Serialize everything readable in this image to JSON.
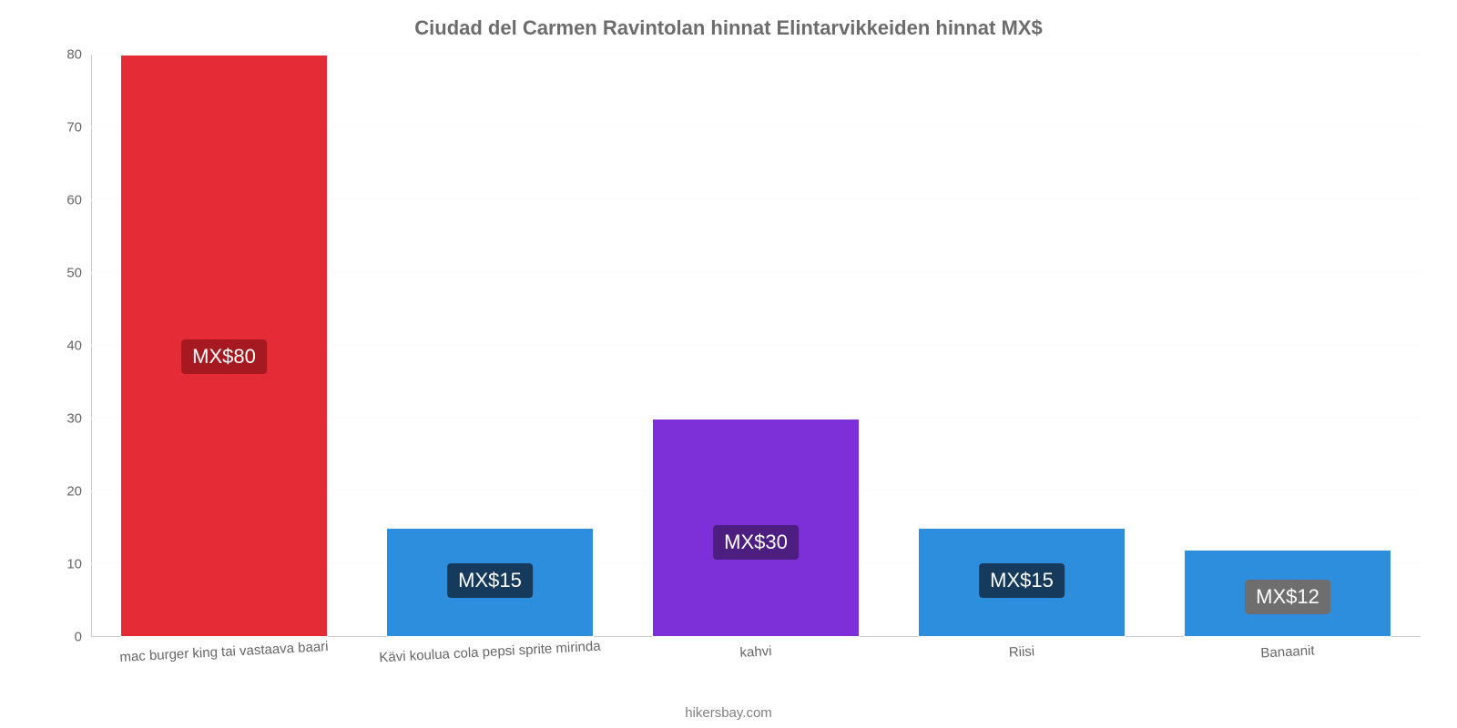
{
  "chart": {
    "type": "bar",
    "title": "Ciudad del Carmen Ravintolan hinnat Elintarvikkeiden hinnat MX$",
    "title_fontsize": 22,
    "title_color": "#6c6c6c",
    "background_color": "#ffffff",
    "grid_color": "#fafafa",
    "axis_color": "#cccccc",
    "ylim": [
      0,
      80
    ],
    "ytick_step": 10,
    "yticks": [
      0,
      10,
      20,
      30,
      40,
      50,
      60,
      70,
      80
    ],
    "ytick_color": "#666666",
    "ytick_fontsize": 15,
    "bar_width_ratio": 0.78,
    "categories": [
      "mac burger king tai vastaava baari",
      "Kävi koulua cola pepsi sprite mirinda",
      "kahvi",
      "Riisi",
      "Banaanit"
    ],
    "values": [
      80,
      15,
      30,
      15,
      12
    ],
    "value_labels": [
      "MX$80",
      "MX$15",
      "MX$30",
      "MX$15",
      "MX$12"
    ],
    "bar_colors": [
      "#e52b36",
      "#2e8ede",
      "#7d30d8",
      "#2e8ede",
      "#2e8ede"
    ],
    "label_bg_colors": [
      "#a61921",
      "#153a5b",
      "#4b1e7f",
      "#153a5b",
      "#6e6e6e"
    ],
    "label_fontsize": 22,
    "category_fontsize": 15,
    "category_color": "#666666",
    "category_rotation_deg": -3,
    "credit": "hikersbay.com",
    "credit_color": "#808080"
  }
}
